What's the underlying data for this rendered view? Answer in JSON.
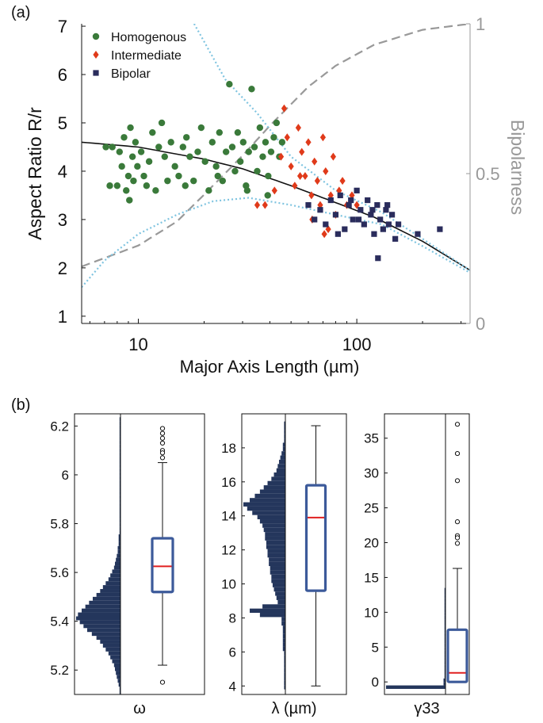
{
  "panel_labels": {
    "a": "(a)",
    "b": "(b)"
  },
  "colors": {
    "homogenous": "#3a7a3a",
    "intermediate": "#e03a1a",
    "bipolar": "#2a2c5c",
    "fit_line": "#111111",
    "bipolarness_curve": "#999999",
    "confidence_band": "#7fc4e0",
    "histogram": "#24365c",
    "box": "#3c5a9a",
    "median": "#e02020",
    "right_axis": "#999999"
  },
  "chart_data": [
    {
      "type": "scatter",
      "xlabel": "Major Axis Length (µm)",
      "ylabel": "Aspect Ratio R/r",
      "y2label": "Bipolarness",
      "xscale": "log",
      "xlim": [
        5.5,
        330
      ],
      "ylim": [
        0.85,
        7.05
      ],
      "y2lim": [
        0,
        1
      ],
      "xticks": [
        10,
        100
      ],
      "xtick_labels": [
        "10",
        "100"
      ],
      "yticks": [
        1,
        2,
        3,
        4,
        5,
        6,
        7
      ],
      "ytick_labels": [
        "1",
        "2",
        "3",
        "4",
        "5",
        "6",
        "7"
      ],
      "y2ticks": [
        0,
        0.5,
        1
      ],
      "y2tick_labels": [
        "0",
        "0.5",
        "1"
      ],
      "grid": false,
      "legend_position": "top-left",
      "series": [
        {
          "name": "Homogenous",
          "marker": "circle",
          "points": [
            [
              7.1,
              4.5
            ],
            [
              7.4,
              3.7
            ],
            [
              7.6,
              4.5
            ],
            [
              8.0,
              3.7
            ],
            [
              8.2,
              4.4
            ],
            [
              8.4,
              4.1
            ],
            [
              8.6,
              4.7
            ],
            [
              8.8,
              3.6
            ],
            [
              9.0,
              3.9
            ],
            [
              9.2,
              4.9
            ],
            [
              9.4,
              4.3
            ],
            [
              9.5,
              3.8
            ],
            [
              9.7,
              4.6
            ],
            [
              9.9,
              4.1
            ],
            [
              10.3,
              4.4
            ],
            [
              10.6,
              3.9
            ],
            [
              10.9,
              3.7
            ],
            [
              11.2,
              4.2
            ],
            [
              11.6,
              4.8
            ],
            [
              12.0,
              3.6
            ],
            [
              12.4,
              4.5
            ],
            [
              12.8,
              5.0
            ],
            [
              13.2,
              4.3
            ],
            [
              13.6,
              3.8
            ],
            [
              14.1,
              4.6
            ],
            [
              14.7,
              4.1
            ],
            [
              15.3,
              3.9
            ],
            [
              16.0,
              4.5
            ],
            [
              16.6,
              4.7
            ],
            [
              17.2,
              4.3
            ],
            [
              17.9,
              3.8
            ],
            [
              18.7,
              4.4
            ],
            [
              19.4,
              4.9
            ],
            [
              20.2,
              4.2
            ],
            [
              21.0,
              3.6
            ],
            [
              21.8,
              4.6
            ],
            [
              22.7,
              4.1
            ],
            [
              23.5,
              4.8
            ],
            [
              24.3,
              3.8
            ],
            [
              25.2,
              4.4
            ],
            [
              26.1,
              5.8
            ],
            [
              26.9,
              4.5
            ],
            [
              27.7,
              4.0
            ],
            [
              28.5,
              4.8
            ],
            [
              29.3,
              4.2
            ],
            [
              30.2,
              4.6
            ],
            [
              31.1,
              3.7
            ],
            [
              32.0,
              4.4
            ],
            [
              33.0,
              5.7
            ],
            [
              34.0,
              4.5
            ],
            [
              35.0,
              4.0
            ],
            [
              36.0,
              4.9
            ],
            [
              37.1,
              4.3
            ],
            [
              38.2,
              4.6
            ],
            [
              39.3,
              3.9
            ],
            [
              40.5,
              4.4
            ],
            [
              41.7,
              4.7
            ],
            [
              42.9,
              5.0
            ],
            [
              44.2,
              4.3
            ],
            [
              45.5,
              4.6
            ],
            [
              9.1,
              3.4
            ],
            [
              16.4,
              3.7
            ],
            [
              23.1,
              3.9
            ],
            [
              31.5,
              3.6
            ],
            [
              39.1,
              3.5
            ]
          ]
        },
        {
          "name": "Intermediate",
          "marker": "diamond",
          "points": [
            [
              35.0,
              3.3
            ],
            [
              38.0,
              3.3
            ],
            [
              42.0,
              3.6
            ],
            [
              45.0,
              4.3
            ],
            [
              46.5,
              5.3
            ],
            [
              48.0,
              4.7
            ],
            [
              50.0,
              4.1
            ],
            [
              52.0,
              3.7
            ],
            [
              54.0,
              4.9
            ],
            [
              56.0,
              4.4
            ],
            [
              58.0,
              3.9
            ],
            [
              60.0,
              4.6
            ],
            [
              62.0,
              3.5
            ],
            [
              64.0,
              4.2
            ],
            [
              66.0,
              3.8
            ],
            [
              68.0,
              3.3
            ],
            [
              70.0,
              4.7
            ],
            [
              72.0,
              4.0
            ],
            [
              74.0,
              2.8
            ],
            [
              76.0,
              3.5
            ],
            [
              78.0,
              4.3
            ],
            [
              80.0,
              3.1
            ],
            [
              83.0,
              3.6
            ],
            [
              86.0,
              3.8
            ],
            [
              90.0,
              3.3
            ],
            [
              95.0,
              3.5
            ],
            [
              100.0,
              3.3
            ],
            [
              62.5,
              3.0
            ],
            [
              71.0,
              2.7
            ],
            [
              55.0,
              3.9
            ]
          ]
        },
        {
          "name": "Bipolar",
          "marker": "square",
          "points": [
            [
              60.0,
              3.3
            ],
            [
              64.0,
              3.0
            ],
            [
              68.0,
              3.2
            ],
            [
              72.0,
              2.9
            ],
            [
              76.0,
              3.4
            ],
            [
              80.0,
              3.1
            ],
            [
              84.0,
              3.5
            ],
            [
              88.0,
              2.8
            ],
            [
              92.0,
              3.3
            ],
            [
              96.0,
              3.0
            ],
            [
              100.0,
              3.6
            ],
            [
              104.0,
              3.2
            ],
            [
              108.0,
              2.9
            ],
            [
              112.0,
              3.4
            ],
            [
              116.0,
              3.1
            ],
            [
              120.0,
              2.7
            ],
            [
              124.0,
              3.3
            ],
            [
              128.0,
              3.0
            ],
            [
              132.0,
              2.8
            ],
            [
              136.0,
              3.2
            ],
            [
              140.0,
              2.9
            ],
            [
              145.0,
              3.1
            ],
            [
              150.0,
              2.6
            ],
            [
              155.0,
              2.9
            ],
            [
              125.0,
              2.2
            ],
            [
              240.0,
              2.8
            ],
            [
              190.0,
              2.7
            ],
            [
              82.0,
              2.7
            ],
            [
              102.0,
              3.0
            ],
            [
              118.0,
              3.2
            ],
            [
              138.0,
              3.3
            ],
            [
              94.0,
              3.4
            ]
          ]
        }
      ],
      "lines": [
        {
          "role": "fit",
          "points": [
            [
              5.5,
              4.6
            ],
            [
              10,
              4.5
            ],
            [
              20,
              4.25
            ],
            [
              30,
              4.05
            ],
            [
              50,
              3.7
            ],
            [
              80,
              3.35
            ],
            [
              120,
              3.05
            ],
            [
              200,
              2.55
            ],
            [
              330,
              1.95
            ]
          ]
        },
        {
          "role": "bipolarness",
          "axis": "right",
          "dash": true,
          "points": [
            [
              5.5,
              0.19
            ],
            [
              10,
              0.26
            ],
            [
              15,
              0.34
            ],
            [
              20,
              0.43
            ],
            [
              30,
              0.56
            ],
            [
              40,
              0.66
            ],
            [
              60,
              0.79
            ],
            [
              80,
              0.86
            ],
            [
              120,
              0.93
            ],
            [
              200,
              0.98
            ],
            [
              330,
              1.0
            ]
          ]
        },
        {
          "role": "band-upper",
          "dotted": true,
          "points": [
            [
              18,
              7.05
            ],
            [
              25,
              5.9
            ],
            [
              35,
              5.2
            ],
            [
              50,
              4.3
            ],
            [
              80,
              3.6
            ],
            [
              130,
              3.15
            ],
            [
              200,
              2.6
            ],
            [
              330,
              1.95
            ]
          ]
        },
        {
          "role": "band-lower",
          "dotted": true,
          "points": [
            [
              5.5,
              1.6
            ],
            [
              7,
              2.15
            ],
            [
              10,
              2.7
            ],
            [
              15,
              3.1
            ],
            [
              22,
              3.38
            ],
            [
              32,
              3.45
            ],
            [
              50,
              3.3
            ],
            [
              80,
              3.1
            ],
            [
              130,
              2.9
            ],
            [
              200,
              2.45
            ],
            [
              330,
              1.9
            ]
          ]
        }
      ]
    },
    {
      "type": "box",
      "xlabel": "ω",
      "ylim": [
        5.1,
        6.25
      ],
      "yticks": [
        5.2,
        5.4,
        5.6,
        5.8,
        6,
        6.2
      ],
      "ytick_labels": [
        "5.2",
        "5.4",
        "5.6",
        "5.8",
        "6",
        "6.2"
      ],
      "box": {
        "whisker_low": 5.22,
        "q1": 5.52,
        "median": 5.625,
        "q3": 5.74,
        "whisker_high": 6.05
      },
      "outliers": [
        6.19,
        6.17,
        6.15,
        6.13,
        6.1,
        6.09,
        6.07,
        5.15
      ],
      "histogram": {
        "bin_start": 5.1,
        "bin_width": 0.016,
        "counts": [
          1,
          1,
          2,
          3,
          4,
          5,
          6,
          7,
          9,
          11,
          13,
          16,
          19,
          22,
          26,
          31,
          36,
          40,
          44,
          48,
          46,
          42,
          38,
          34,
          30,
          26,
          22,
          19,
          16,
          13,
          11,
          9,
          7,
          6,
          5,
          4,
          3,
          3,
          2,
          2,
          2,
          1,
          1,
          1,
          1,
          1,
          1,
          1,
          1,
          1,
          1,
          1,
          1,
          1,
          1,
          1,
          1,
          1,
          1,
          1,
          1,
          1,
          1,
          1,
          1,
          1,
          1,
          1,
          1,
          1,
          1
        ]
      }
    },
    {
      "type": "box",
      "xlabel": "λ (µm)",
      "ylim": [
        3.5,
        20
      ],
      "yticks": [
        4,
        6,
        8,
        10,
        12,
        14,
        16,
        18
      ],
      "ytick_labels": [
        "4",
        "6",
        "8",
        "10",
        "12",
        "14",
        "16",
        "18"
      ],
      "box": {
        "whisker_low": 4.0,
        "q1": 9.6,
        "median": 13.9,
        "q3": 15.8,
        "whisker_high": 19.3
      },
      "outliers": [],
      "histogram": {
        "bin_start": 3.8,
        "bin_width": 0.25,
        "counts": [
          1,
          1,
          1,
          1,
          1,
          1,
          1,
          1,
          1,
          2,
          2,
          2,
          2,
          2,
          2,
          3,
          3,
          20,
          28,
          18,
          6,
          7,
          8,
          9,
          10,
          11,
          11,
          12,
          12,
          13,
          13,
          14,
          14,
          15,
          15,
          16,
          16,
          17,
          18,
          20,
          22,
          26,
          30,
          33,
          28,
          24,
          20,
          17,
          14,
          11,
          9,
          7,
          6,
          5,
          4,
          3,
          2,
          2,
          1,
          1,
          1,
          1,
          1
        ]
      }
    },
    {
      "type": "box",
      "xlabel": "γ33",
      "ylim": [
        -1.8,
        38.5
      ],
      "yticks": [
        0,
        5,
        10,
        15,
        20,
        25,
        30,
        35
      ],
      "ytick_labels": [
        "0",
        "5",
        "10",
        "15",
        "20",
        "25",
        "30",
        "35"
      ],
      "box": {
        "whisker_low": 0.0,
        "q1": 0.0,
        "median": 1.3,
        "q3": 7.5,
        "whisker_high": 16.3
      },
      "outliers": [
        37.0,
        32.8,
        28.9,
        23.0,
        21.0,
        20.7,
        19.9
      ],
      "histogram": {
        "bin_start": -1.0,
        "bin_width": 0.5,
        "counts": [
          60,
          2,
          2,
          1,
          1,
          1,
          1,
          1,
          1,
          1,
          1,
          1,
          1,
          1,
          1,
          1,
          1,
          1,
          1,
          1,
          1,
          1,
          1,
          1,
          1,
          1,
          1,
          1,
          1
        ]
      }
    }
  ]
}
